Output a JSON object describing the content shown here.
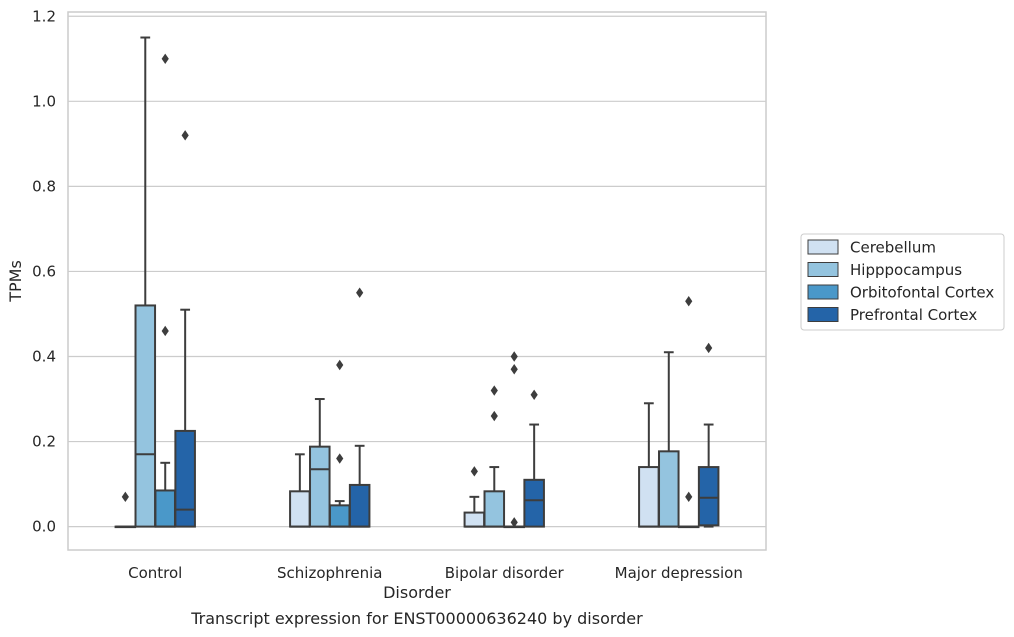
{
  "chart_data": {
    "type": "box",
    "caption": "Transcript expression for ENST00000636240 by disorder",
    "xlabel": "Disorder",
    "ylabel": "TPMs",
    "ylim": [
      -0.055,
      1.21
    ],
    "yticks": [
      0.0,
      0.2,
      0.4,
      0.6,
      0.8,
      1.0,
      1.2
    ],
    "ytick_labels": [
      "0.0",
      "0.2",
      "0.4",
      "0.6",
      "0.8",
      "1.0",
      "1.2"
    ],
    "grid": "horizontal",
    "legend_position": "right",
    "categories": [
      "Control",
      "Schizophrenia",
      "Bipolar disorder",
      "Major depression"
    ],
    "series": [
      {
        "name": "Cerebellum",
        "color": "#d0e1f2",
        "boxes": [
          {
            "whisker_low": 0.0,
            "q1": 0.0,
            "median": 0.0,
            "q3": 0.0,
            "whisker_high": 0.0,
            "outliers": [
              0.07
            ]
          },
          {
            "whisker_low": 0.0,
            "q1": 0.0,
            "median": 0.0,
            "q3": 0.083,
            "whisker_high": 0.17,
            "outliers": []
          },
          {
            "whisker_low": 0.0,
            "q1": 0.0,
            "median": 0.0,
            "q3": 0.033,
            "whisker_high": 0.07,
            "outliers": [
              0.13
            ]
          },
          {
            "whisker_low": 0.0,
            "q1": 0.0,
            "median": 0.0,
            "q3": 0.14,
            "whisker_high": 0.29,
            "outliers": []
          }
        ]
      },
      {
        "name": "Hipppocampus",
        "color": "#94c4df",
        "boxes": [
          {
            "whisker_low": 0.0,
            "q1": 0.0,
            "median": 0.17,
            "q3": 0.52,
            "whisker_high": 1.15,
            "outliers": []
          },
          {
            "whisker_low": 0.0,
            "q1": 0.0,
            "median": 0.135,
            "q3": 0.188,
            "whisker_high": 0.3,
            "outliers": []
          },
          {
            "whisker_low": 0.0,
            "q1": 0.0,
            "median": 0.0,
            "q3": 0.083,
            "whisker_high": 0.14,
            "outliers": [
              0.26,
              0.32
            ]
          },
          {
            "whisker_low": 0.0,
            "q1": 0.0,
            "median": 0.0,
            "q3": 0.177,
            "whisker_high": 0.41,
            "outliers": []
          }
        ]
      },
      {
        "name": "Orbitofontal Cortex",
        "color": "#4a98c9",
        "boxes": [
          {
            "whisker_low": 0.0,
            "q1": 0.0,
            "median": 0.0,
            "q3": 0.085,
            "whisker_high": 0.15,
            "outliers": [
              0.46,
              1.1
            ]
          },
          {
            "whisker_low": 0.0,
            "q1": 0.0,
            "median": 0.0,
            "q3": 0.05,
            "whisker_high": 0.06,
            "outliers": [
              0.16,
              0.38
            ]
          },
          {
            "whisker_low": 0.0,
            "q1": 0.0,
            "median": 0.0,
            "q3": 0.0,
            "whisker_high": 0.0,
            "outliers": [
              0.01,
              0.37,
              0.4
            ]
          },
          {
            "whisker_low": 0.0,
            "q1": 0.0,
            "median": 0.0,
            "q3": 0.0,
            "whisker_high": 0.0,
            "outliers": [
              0.07,
              0.53
            ]
          }
        ]
      },
      {
        "name": "Prefrontal Cortex",
        "color": "#2464a8",
        "boxes": [
          {
            "whisker_low": 0.0,
            "q1": 0.0,
            "median": 0.04,
            "q3": 0.225,
            "whisker_high": 0.51,
            "outliers": [
              0.92
            ]
          },
          {
            "whisker_low": 0.0,
            "q1": 0.0,
            "median": 0.0,
            "q3": 0.098,
            "whisker_high": 0.19,
            "outliers": [
              0.55
            ]
          },
          {
            "whisker_low": 0.0,
            "q1": 0.0,
            "median": 0.062,
            "q3": 0.11,
            "whisker_high": 0.24,
            "outliers": [
              0.31
            ]
          },
          {
            "whisker_low": 0.0,
            "q1": 0.003,
            "median": 0.068,
            "q3": 0.14,
            "whisker_high": 0.24,
            "outliers": [
              0.42
            ]
          }
        ]
      }
    ]
  }
}
